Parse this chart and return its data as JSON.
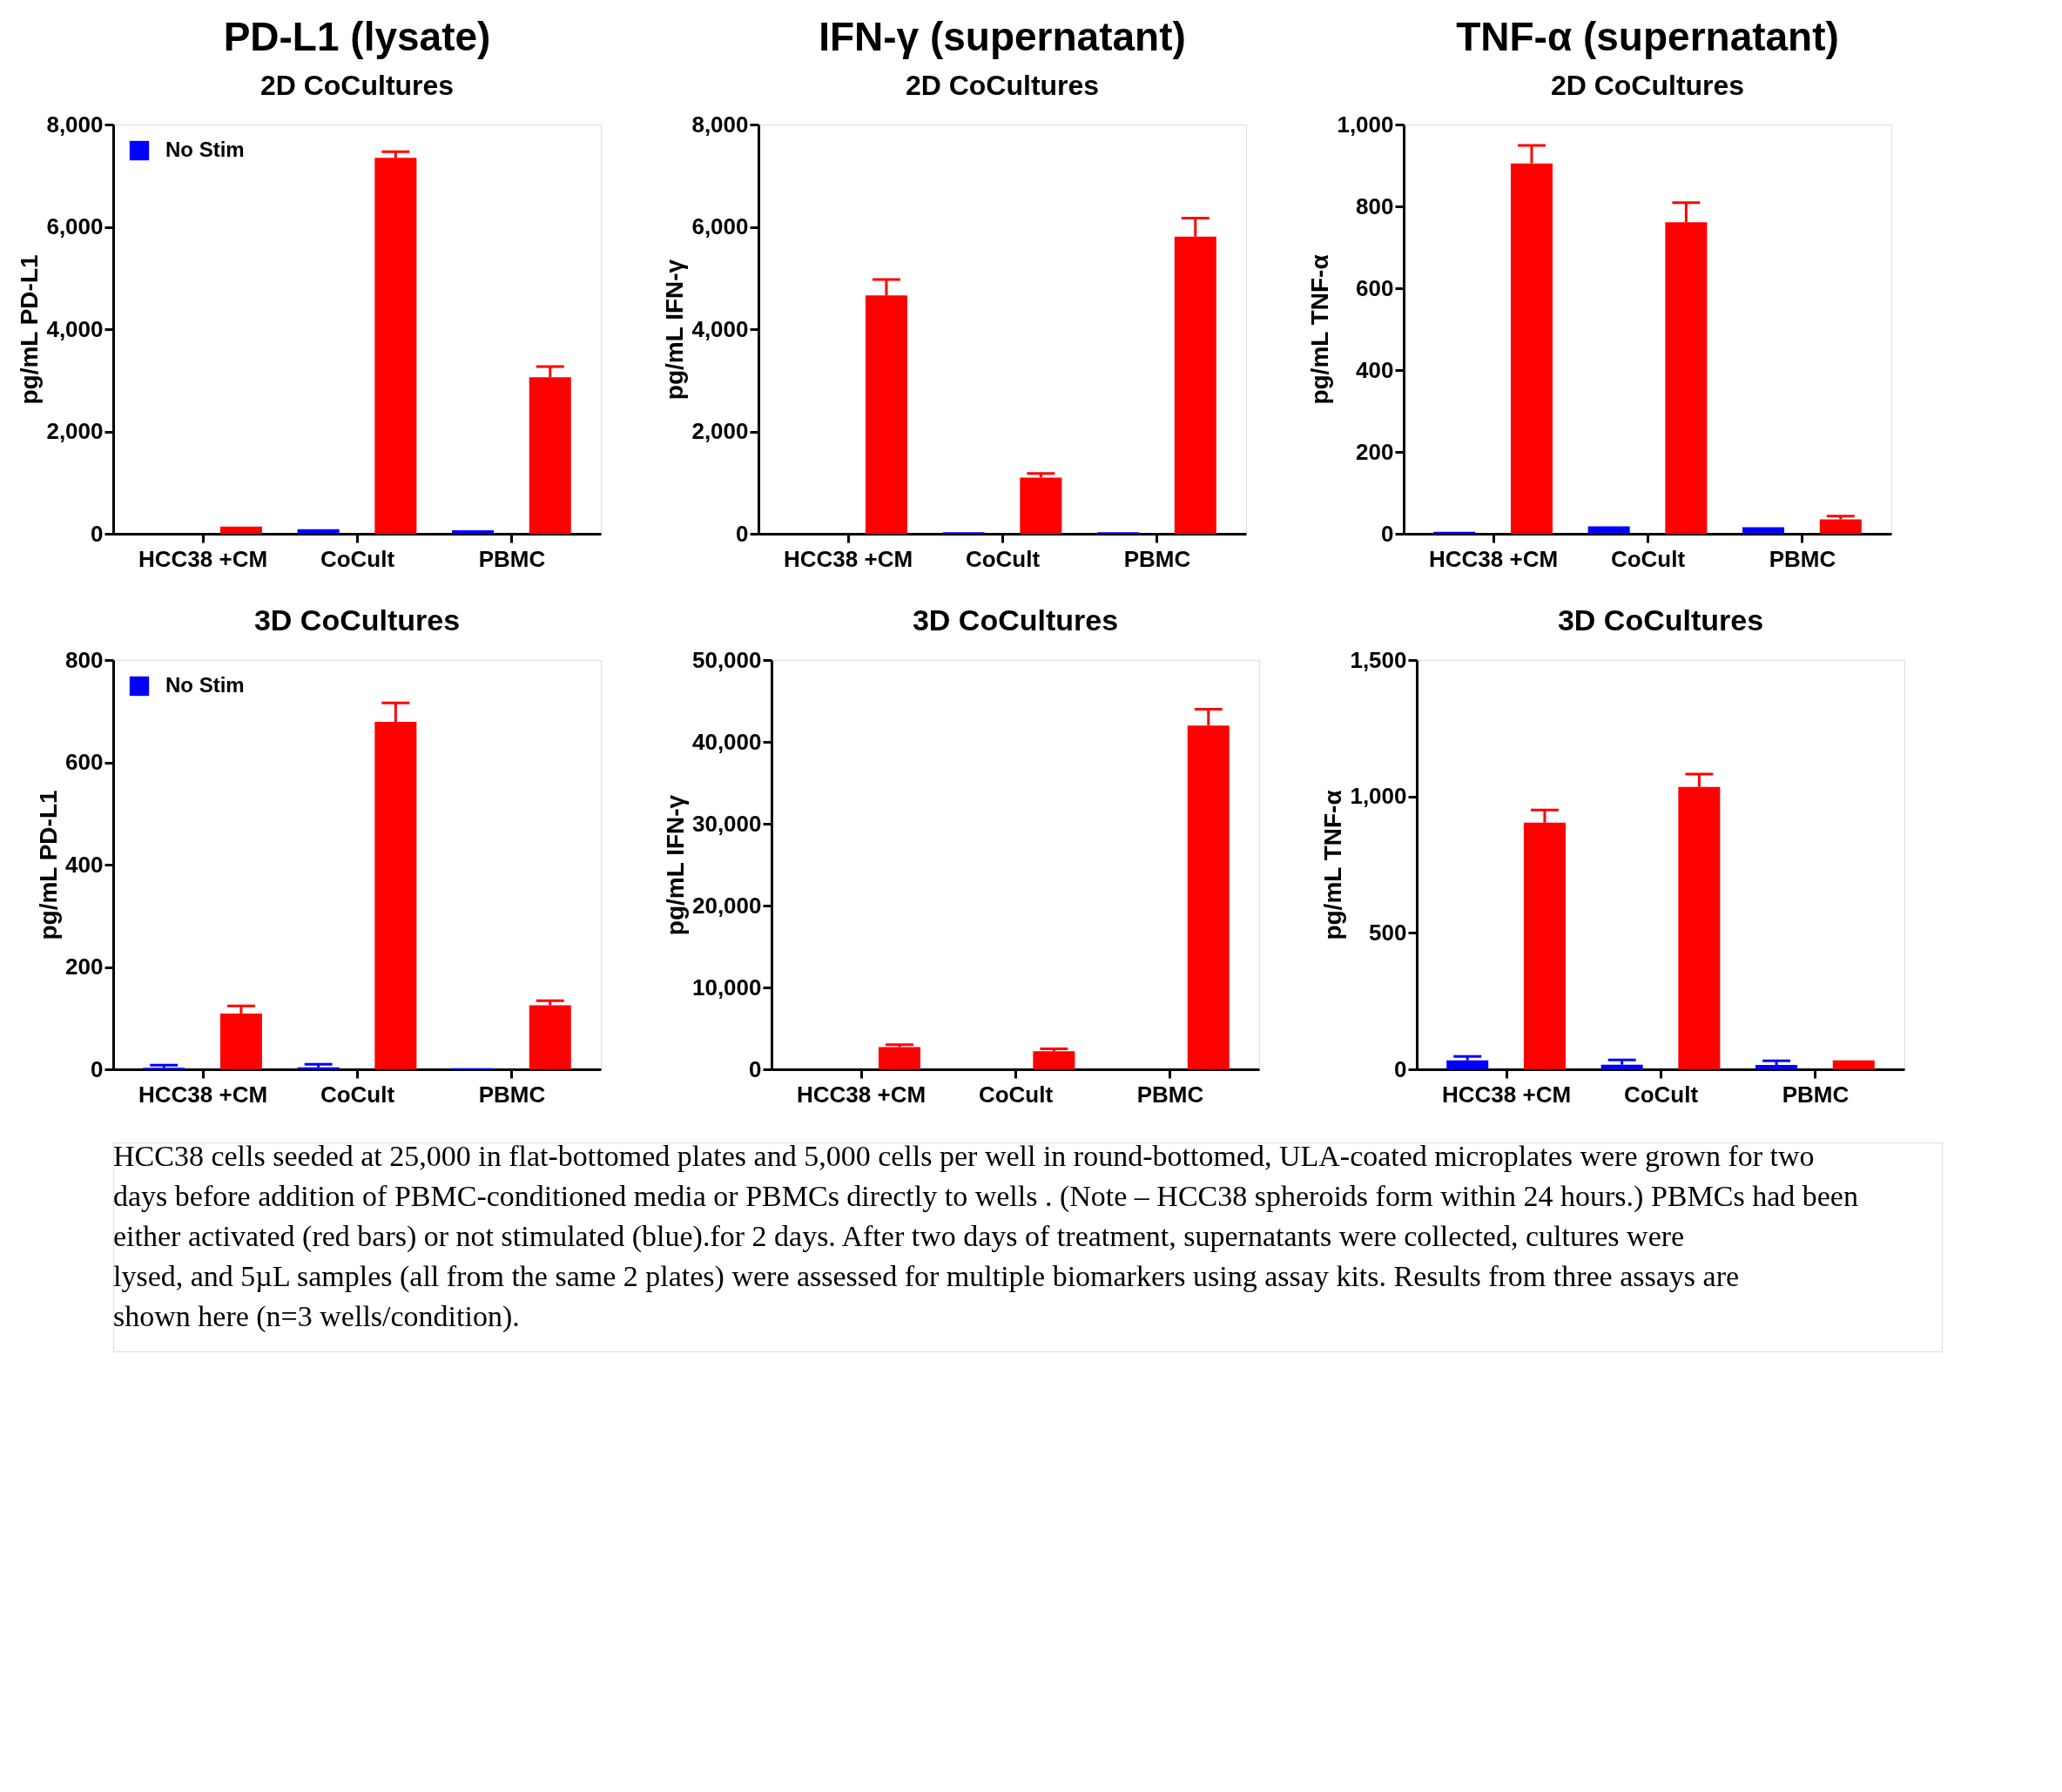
{
  "chart_data": [
    {
      "type": "bar",
      "title": "PD-L1 (lysate)",
      "subtitle": "2D CoCultures",
      "ylabel": "pg/mL PD-L1",
      "categories": [
        "HCC38 +CM",
        "CoCult",
        "PBMC"
      ],
      "legend": "top left",
      "ylim": [
        0,
        8000
      ],
      "yticks": [
        0,
        {
          "value": 2000,
          "label": "2,000"
        },
        {
          "value": 4000,
          "label": "4,000"
        },
        {
          "value": 6000,
          "label": "6,000"
        },
        {
          "value": 8000,
          "label": "8,000"
        }
      ],
      "series": [
        {
          "name": "No Stim",
          "color": "#0000ff",
          "values": [
            0,
            90,
            70
          ],
          "errors": [
            null,
            null,
            null
          ]
        },
        {
          "color": "#ff0000",
          "values": [
            140,
            7350,
            3060
          ],
          "errors": [
            null,
            [
              7350,
              7470
            ],
            [
              3060,
              3270
            ]
          ]
        }
      ]
    },
    {
      "type": "bar",
      "title": "IFN-γ (supernatant)",
      "subtitle": "2D CoCultures",
      "ylabel": "pg/mL IFN-γ",
      "categories": [
        "HCC38 +CM",
        "CoCult",
        "PBMC"
      ],
      "ylim": [
        0,
        8000
      ],
      "yticks": [
        0,
        {
          "value": 2000,
          "label": "2,000"
        },
        {
          "value": 4000,
          "label": "4,000"
        },
        {
          "value": 6000,
          "label": "6,000"
        },
        {
          "value": 8000,
          "label": "8,000"
        }
      ],
      "series": [
        {
          "color": "#0000ff",
          "values": [
            0,
            30,
            30
          ],
          "errors": [
            null,
            null,
            null
          ]
        },
        {
          "color": "#ff0000",
          "values": [
            4660,
            1100,
            5810
          ],
          "errors": [
            [
              4660,
              4970
            ],
            [
              1100,
              1180
            ],
            [
              5810,
              6170
            ]
          ]
        }
      ]
    },
    {
      "type": "bar",
      "title": "TNF-α (supernatant)",
      "subtitle": "2D CoCultures",
      "ylabel": "pg/mL TNF-α",
      "categories": [
        "HCC38 +CM",
        "CoCult",
        "PBMC"
      ],
      "ylim": [
        0,
        1000
      ],
      "yticks": [
        0,
        200,
        400,
        600,
        800,
        {
          "value": 1000,
          "label": "1,000"
        }
      ],
      "series": [
        {
          "color": "#0000ff",
          "values": [
            5,
            18,
            16
          ],
          "errors": [
            null,
            null,
            null
          ]
        },
        {
          "color": "#ff0000",
          "values": [
            905,
            761,
            35
          ],
          "errors": [
            [
              905,
              949
            ],
            [
              761,
              809
            ],
            [
              35,
              43
            ]
          ]
        }
      ]
    },
    {
      "type": "bar",
      "title": "3D CoCultures",
      "ylabel": "pg/mL PD-L1",
      "categories": [
        "HCC38 +CM",
        "CoCult",
        "PBMC"
      ],
      "legend": "top left",
      "ylim": [
        0,
        800
      ],
      "yticks": [
        0,
        200,
        400,
        600,
        800
      ],
      "series": [
        {
          "name": "No Stim",
          "color": "#0000ff",
          "values": [
            3,
            4,
            2
          ],
          "errors": [
            [
              3,
              8
            ],
            [
              4,
              10
            ],
            null
          ]
        },
        {
          "color": "#ff0000",
          "values": [
            109,
            679,
            125
          ],
          "errors": [
            [
              109,
              124
            ],
            [
              679,
              716
            ],
            [
              125,
              134
            ]
          ]
        }
      ]
    },
    {
      "type": "bar",
      "title": "3D CoCultures",
      "ylabel": "pg/mL IFN-γ",
      "categories": [
        "HCC38 +CM",
        "CoCult",
        "PBMC"
      ],
      "ylim": [
        0,
        50000
      ],
      "yticks": [
        0,
        {
          "value": 10000,
          "label": "10,000"
        },
        {
          "value": 20000,
          "label": "20,000"
        },
        {
          "value": 30000,
          "label": "30,000"
        },
        {
          "value": 40000,
          "label": "40,000"
        },
        {
          "value": 50000,
          "label": "50,000"
        }
      ],
      "series": [
        {
          "color": "#0000ff",
          "values": [
            0,
            0,
            0
          ],
          "errors": [
            null,
            null,
            null
          ]
        },
        {
          "color": "#ff0000",
          "values": [
            2700,
            2200,
            42000
          ],
          "errors": [
            [
              2700,
              3000
            ],
            [
              2200,
              2500
            ],
            [
              42000,
              44000
            ]
          ]
        }
      ]
    },
    {
      "type": "bar",
      "title": "3D CoCultures",
      "ylabel": "pg/mL TNF-α",
      "categories": [
        "HCC38 +CM",
        "CoCult",
        "PBMC"
      ],
      "ylim": [
        0,
        1500
      ],
      "yticks": [
        0,
        500,
        {
          "value": 1000,
          "label": "1,000"
        },
        {
          "value": 1500,
          "label": "1,500"
        }
      ],
      "series": [
        {
          "color": "#0000ff",
          "values": [
            33,
            17,
            16
          ],
          "errors": [
            [
              33,
              47
            ],
            [
              17,
              34
            ],
            [
              16,
              31
            ]
          ]
        },
        {
          "color": "#ff0000",
          "values": [
            904,
            1035,
            33
          ],
          "errors": [
            [
              904,
              950
            ],
            [
              1035,
              1082
            ],
            null
          ]
        }
      ]
    },
    {
      "type": "other",
      "annotations": [
        "HCC38 cells seeded at 25,000 in flat-bottomed plates and 5,000 cells per well in round-bottomed, ULA-coated microplates were grown for two days before addition of PBMC-conditioned media or PBMCs  directly to wells . (Note – HCC38 spheroids form within 24 hours.) PBMCs had been either activated (red bars) or not stimulated (blue).for 2 days. After two days of treatment, supernatants were collected, cultures were lysed, and 5µL samples (all from the same 2 plates) were assessed for multiple biomarkers using assay kits. Results from three assays are shown here (n=3 wells/condition)."
      ]
    }
  ]
}
